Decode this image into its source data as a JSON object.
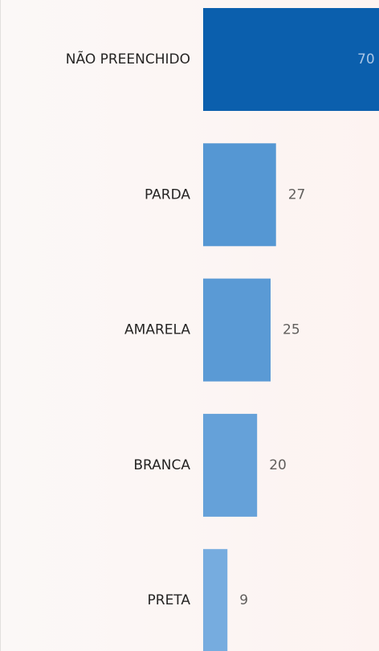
{
  "chart_data": {
    "type": "bar",
    "orientation": "horizontal",
    "categories": [
      "NÃO PREENCHIDO",
      "PARDA",
      "AMARELA",
      "BRANCA",
      "PRETA"
    ],
    "values": [
      70,
      27,
      25,
      20,
      9
    ],
    "colors": [
      "#0b5fad",
      "#5597d3",
      "#5a9ad5",
      "#65a1d9",
      "#76acdf"
    ]
  }
}
